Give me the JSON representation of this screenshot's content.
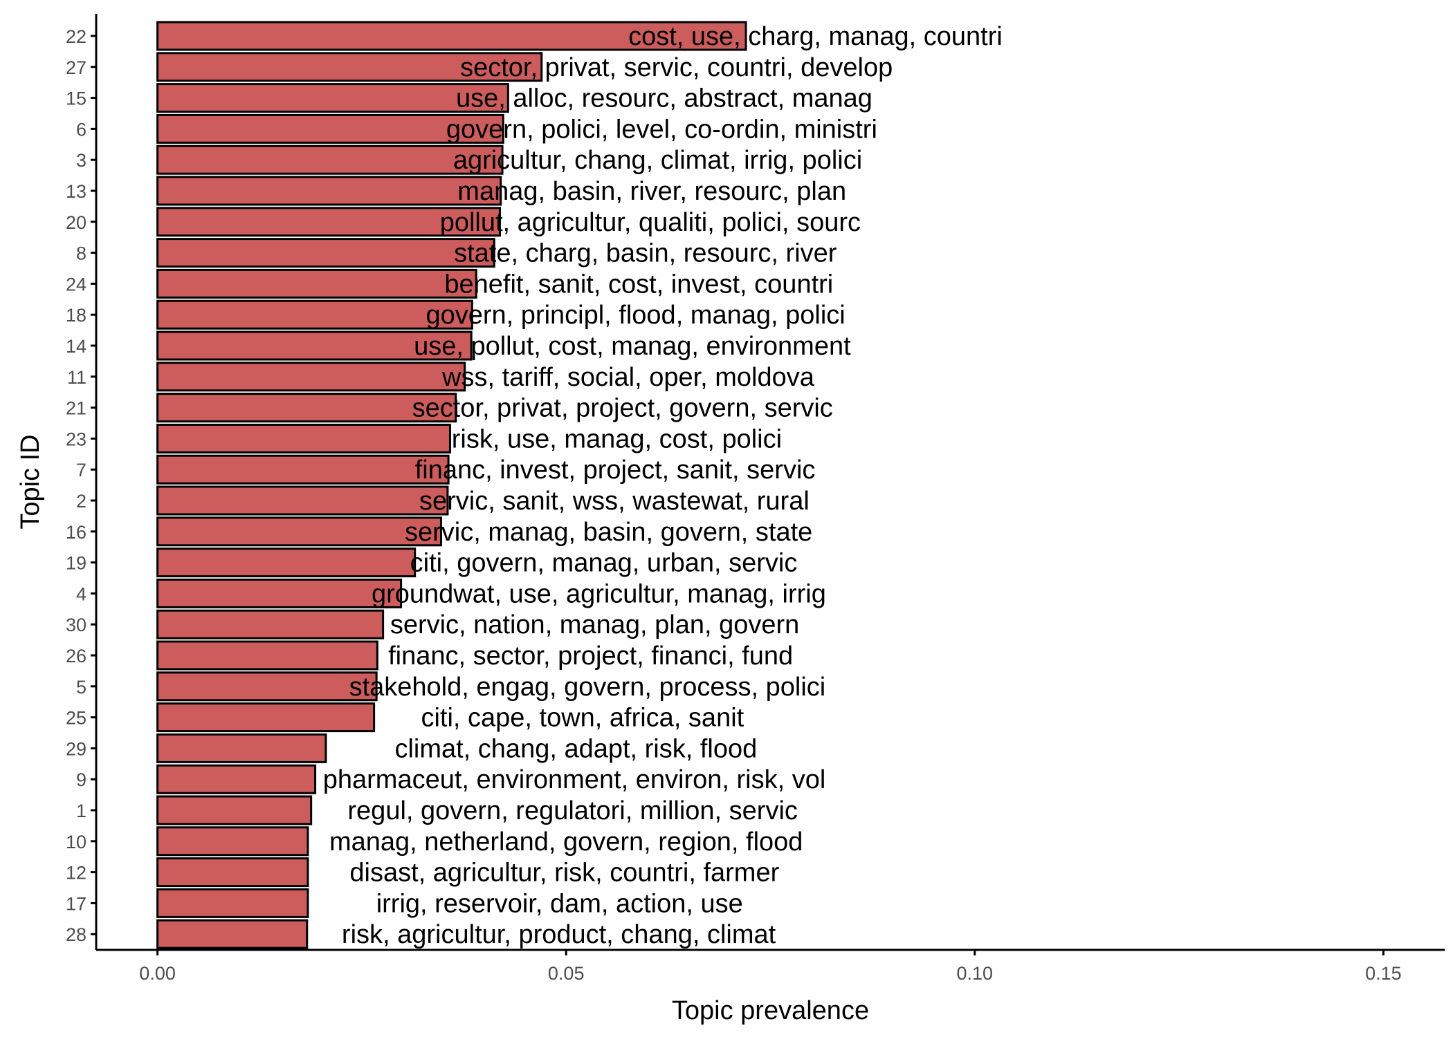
{
  "chart_data": {
    "type": "bar",
    "orientation": "horizontal",
    "xlabel": "Topic prevalence",
    "ylabel": "Topic ID",
    "xlim": [
      -0.0075,
      0.1575
    ],
    "xticks": [
      0.0,
      0.05,
      0.1,
      0.15
    ],
    "xtick_labels": [
      "0.00",
      "0.05",
      "0.10",
      "0.15"
    ],
    "grid": false,
    "legend": "none",
    "bar_color": "#cd5c5c",
    "bar_edge_color": "#000000",
    "categories": [
      "22",
      "27",
      "15",
      "6",
      "3",
      "13",
      "20",
      "8",
      "24",
      "18",
      "14",
      "11",
      "21",
      "23",
      "7",
      "2",
      "16",
      "19",
      "4",
      "30",
      "26",
      "5",
      "25",
      "29",
      "9",
      "1",
      "10",
      "12",
      "17",
      "28"
    ],
    "values": [
      0.072,
      0.047,
      0.0429,
      0.0423,
      0.0422,
      0.042,
      0.0419,
      0.0412,
      0.039,
      0.0385,
      0.0384,
      0.0376,
      0.0365,
      0.0358,
      0.0356,
      0.0355,
      0.0347,
      0.0315,
      0.0298,
      0.0276,
      0.0269,
      0.0268,
      0.0265,
      0.0206,
      0.0193,
      0.0188,
      0.0184,
      0.0184,
      0.0184,
      0.0183
    ],
    "topic_labels": [
      "cost, use, charg, manag, countri",
      "sector, privat, servic, countri, develop",
      "use, alloc, resourc, abstract, manag",
      "govern, polici, level, co-ordin, ministri",
      "agricultur, chang, climat, irrig, polici",
      "manag, basin, river, resourc, plan",
      "pollut, agricultur, qualiti, polici, sourc",
      "state, charg, basin, resourc, river",
      "benefit, sanit, cost, invest, countri",
      "govern, principl, flood, manag, polici",
      "use, pollut, cost, manag, environment",
      "wss, tariff, social, oper, moldova",
      "sector, privat, project, govern, servic",
      "risk, use, manag, cost, polici",
      "financ, invest, project, sanit, servic",
      "servic, sanit, wss, wastewat, rural",
      "servic, manag, basin, govern, state",
      "citi, govern, manag, urban, servic",
      "groundwat, use, agricultur, manag, irrig",
      "servic, nation, manag, plan, govern",
      "financ, sector, project, financi, fund",
      "stakehold, engag, govern, process, polici",
      "citi, cape, town, africa, sanit",
      "climat, chang, adapt, risk, flood",
      "pharmaceut, environment, environ, risk, vol",
      "regul, govern, regulatori, million, servic",
      "manag, netherland, govern, region, flood",
      "disast, agricultur, risk, countri, farmer",
      "irrig, reservoir, dam, action, use",
      "risk, agricultur, product, chang, climat"
    ],
    "label_centers": [
      0.0805,
      0.0635,
      0.062,
      0.0617,
      0.0612,
      0.0605,
      0.0603,
      0.0597,
      0.0589,
      0.0585,
      0.0581,
      0.0576,
      0.0569,
      0.0562,
      0.056,
      0.0559,
      0.0552,
      0.0546,
      0.054,
      0.0535,
      0.053,
      0.0526,
      0.052,
      0.0512,
      0.051,
      0.0508,
      0.05,
      0.0498,
      0.0492,
      0.0491
    ]
  }
}
